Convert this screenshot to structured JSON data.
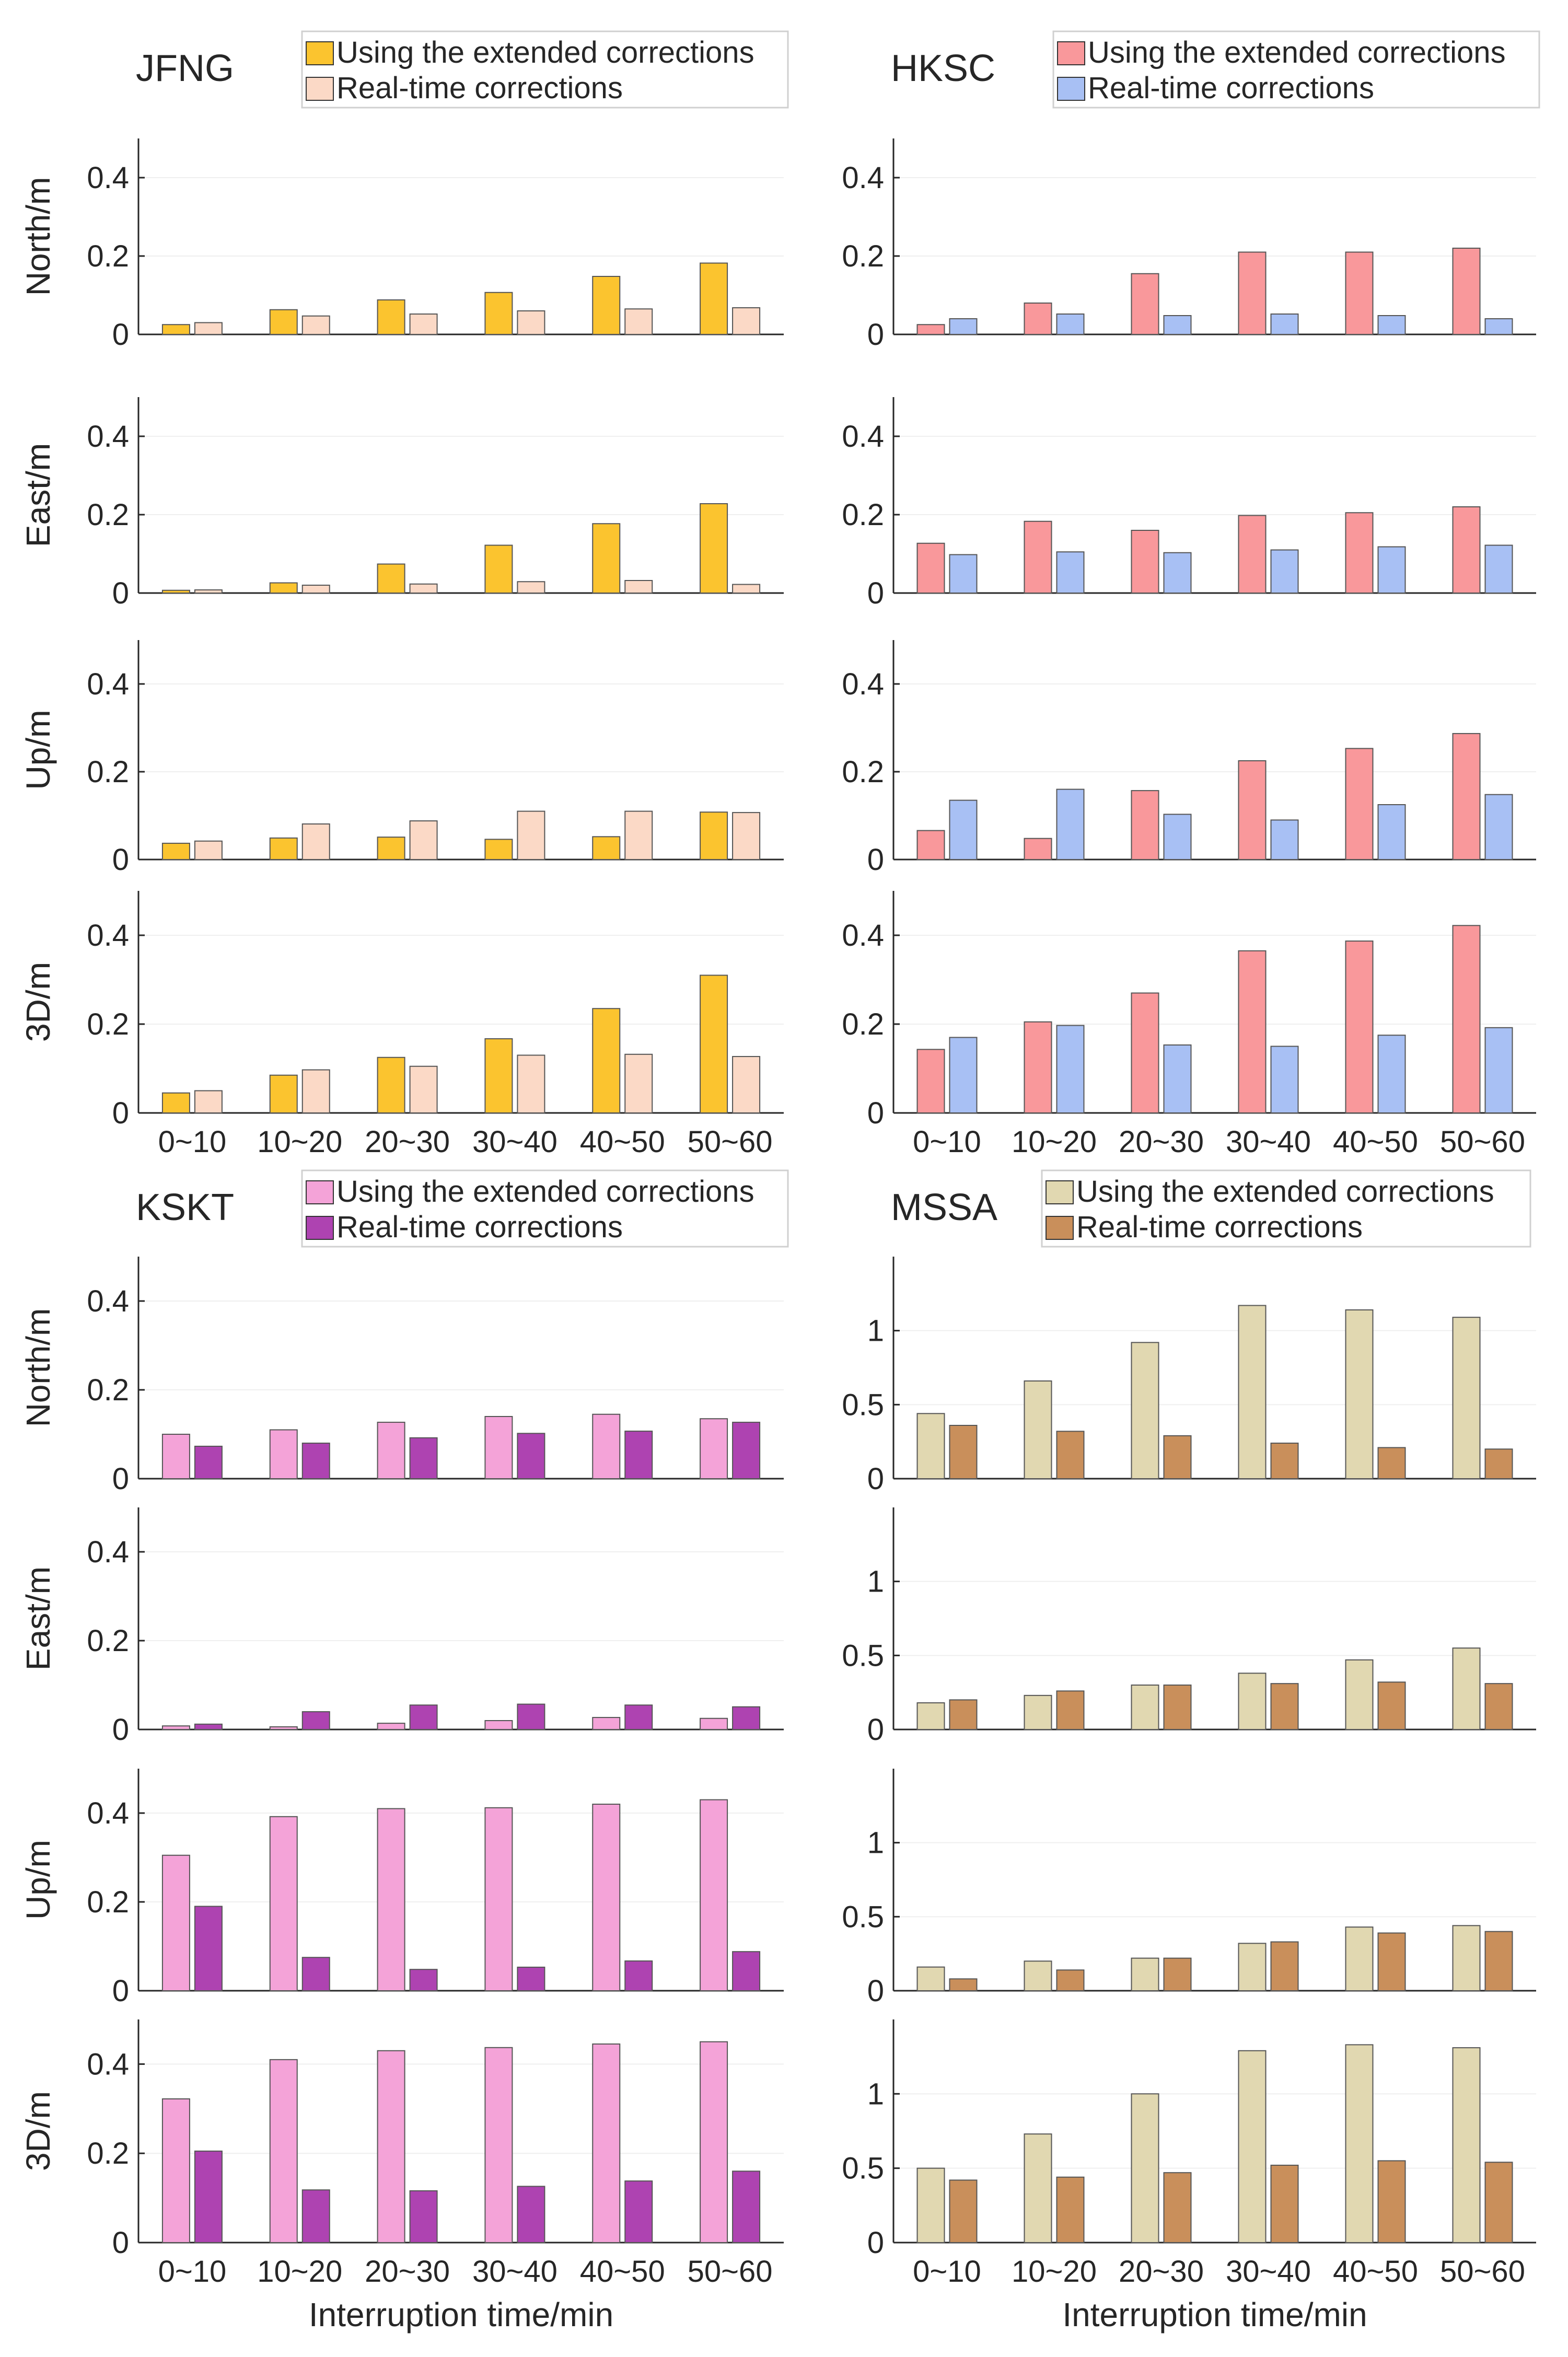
{
  "figure": {
    "xlabel": "Interruption time/min",
    "categories": [
      "0~10",
      "10~20",
      "20~30",
      "30~40",
      "40~50",
      "50~60"
    ],
    "rows": [
      "North/m",
      "East/m",
      "Up/m",
      "3D/m"
    ]
  },
  "colors": {
    "JFNG": [
      "#fbc42f",
      "#fbd9c6"
    ],
    "HKSC": [
      "#f9989b",
      "#a8c0f4"
    ],
    "KSKT": [
      "#f4a3d8",
      "#ae43b1"
    ],
    "MSSA": [
      "#e1d8b1",
      "#c98f5b"
    ]
  },
  "chart_data": [
    {
      "type": "bar",
      "station": "JFNG",
      "title": "JFNG",
      "categories": [
        "0~10",
        "10~20",
        "20~30",
        "30~40",
        "40~50",
        "50~60"
      ],
      "ylim": [
        0,
        0.5
      ],
      "yticks": [
        0,
        0.2,
        0.4
      ],
      "ytick_labels": [
        "0",
        "0.2",
        "0.4"
      ],
      "legend": [
        "Using the extended corrections",
        "Real-time corrections"
      ],
      "panels": [
        {
          "ylabel": "North/m",
          "xlabel": "",
          "series": [
            {
              "name": "Using the extended corrections",
              "values": [
                0.025,
                0.063,
                0.088,
                0.107,
                0.148,
                0.182
              ]
            },
            {
              "name": "Real-time corrections",
              "values": [
                0.03,
                0.047,
                0.052,
                0.06,
                0.065,
                0.068
              ]
            }
          ]
        },
        {
          "ylabel": "East/m",
          "xlabel": "",
          "series": [
            {
              "name": "Using the extended corrections",
              "values": [
                0.007,
                0.026,
                0.074,
                0.122,
                0.177,
                0.228
              ]
            },
            {
              "name": "Real-time corrections",
              "values": [
                0.008,
                0.02,
                0.023,
                0.029,
                0.032,
                0.022
              ]
            }
          ]
        },
        {
          "ylabel": "Up/m",
          "xlabel": "",
          "series": [
            {
              "name": "Using the extended corrections",
              "values": [
                0.037,
                0.049,
                0.051,
                0.046,
                0.052,
                0.108
              ]
            },
            {
              "name": "Real-time corrections",
              "values": [
                0.042,
                0.081,
                0.088,
                0.11,
                0.11,
                0.107
              ]
            }
          ]
        },
        {
          "ylabel": "3D/m",
          "xlabel": "Interruption time/min",
          "series": [
            {
              "name": "Using the extended corrections",
              "values": [
                0.045,
                0.085,
                0.125,
                0.167,
                0.235,
                0.31
              ]
            },
            {
              "name": "Real-time corrections",
              "values": [
                0.05,
                0.097,
                0.105,
                0.13,
                0.132,
                0.127
              ]
            }
          ]
        }
      ]
    },
    {
      "type": "bar",
      "station": "HKSC",
      "title": "HKSC",
      "categories": [
        "0~10",
        "10~20",
        "20~30",
        "30~40",
        "40~50",
        "50~60"
      ],
      "ylim": [
        0,
        0.5
      ],
      "yticks": [
        0,
        0.2,
        0.4
      ],
      "ytick_labels": [
        "0",
        "0.2",
        "0.4"
      ],
      "legend": [
        "Using the extended corrections",
        "Real-time corrections"
      ],
      "panels": [
        {
          "ylabel": "North/m",
          "xlabel": "",
          "series": [
            {
              "name": "Using the extended corrections",
              "values": [
                0.025,
                0.08,
                0.155,
                0.21,
                0.21,
                0.22
              ]
            },
            {
              "name": "Real-time corrections",
              "values": [
                0.04,
                0.052,
                0.048,
                0.052,
                0.048,
                0.04
              ]
            }
          ]
        },
        {
          "ylabel": "East/m",
          "xlabel": "",
          "series": [
            {
              "name": "Using the extended corrections",
              "values": [
                0.127,
                0.183,
                0.16,
                0.198,
                0.205,
                0.22
              ]
            },
            {
              "name": "Real-time corrections",
              "values": [
                0.098,
                0.105,
                0.103,
                0.11,
                0.118,
                0.122
              ]
            }
          ]
        },
        {
          "ylabel": "Up/m",
          "xlabel": "",
          "series": [
            {
              "name": "Using the extended corrections",
              "values": [
                0.066,
                0.048,
                0.157,
                0.225,
                0.253,
                0.287
              ]
            },
            {
              "name": "Real-time corrections",
              "values": [
                0.135,
                0.16,
                0.103,
                0.09,
                0.125,
                0.148
              ]
            }
          ]
        },
        {
          "ylabel": "3D/m",
          "xlabel": "Interruption time/min",
          "series": [
            {
              "name": "Using the extended corrections",
              "values": [
                0.143,
                0.205,
                0.27,
                0.365,
                0.387,
                0.422
              ]
            },
            {
              "name": "Real-time corrections",
              "values": [
                0.17,
                0.197,
                0.153,
                0.15,
                0.175,
                0.192
              ]
            }
          ]
        }
      ]
    },
    {
      "type": "bar",
      "station": "KSKT",
      "title": "KSKT",
      "categories": [
        "0~10",
        "10~20",
        "20~30",
        "30~40",
        "40~50",
        "50~60"
      ],
      "ylim": [
        0,
        0.5
      ],
      "yticks": [
        0,
        0.2,
        0.4
      ],
      "ytick_labels": [
        "0",
        "0.2",
        "0.4"
      ],
      "legend": [
        "Using the extended corrections",
        "Real-time corrections"
      ],
      "panels": [
        {
          "ylabel": "North/m",
          "xlabel": "",
          "series": [
            {
              "name": "Using the extended corrections",
              "values": [
                0.1,
                0.11,
                0.127,
                0.14,
                0.145,
                0.135
              ]
            },
            {
              "name": "Real-time corrections",
              "values": [
                0.073,
                0.08,
                0.092,
                0.102,
                0.107,
                0.127
              ]
            }
          ]
        },
        {
          "ylabel": "East/m",
          "xlabel": "",
          "series": [
            {
              "name": "Using the extended corrections",
              "values": [
                0.008,
                0.006,
                0.014,
                0.02,
                0.027,
                0.025
              ]
            },
            {
              "name": "Real-time corrections",
              "values": [
                0.012,
                0.04,
                0.055,
                0.057,
                0.055,
                0.051
              ]
            }
          ]
        },
        {
          "ylabel": "Up/m",
          "xlabel": "",
          "series": [
            {
              "name": "Using the extended corrections",
              "values": [
                0.305,
                0.392,
                0.41,
                0.412,
                0.42,
                0.43
              ]
            },
            {
              "name": "Real-time corrections",
              "values": [
                0.19,
                0.075,
                0.048,
                0.053,
                0.067,
                0.088
              ]
            }
          ]
        },
        {
          "ylabel": "3D/m",
          "xlabel": "Interruption time/min",
          "series": [
            {
              "name": "Using the extended corrections",
              "values": [
                0.322,
                0.41,
                0.43,
                0.437,
                0.445,
                0.45
              ]
            },
            {
              "name": "Real-time corrections",
              "values": [
                0.205,
                0.118,
                0.116,
                0.126,
                0.138,
                0.16
              ]
            }
          ]
        }
      ]
    },
    {
      "type": "bar",
      "station": "MSSA",
      "title": "MSSA",
      "categories": [
        "0~10",
        "10~20",
        "20~30",
        "30~40",
        "40~50",
        "50~60"
      ],
      "ylim": [
        0,
        1.5
      ],
      "yticks": [
        0,
        0.5,
        1
      ],
      "ytick_labels": [
        "0",
        "0.5",
        "1"
      ],
      "legend": [
        "Using the extended corrections",
        "Real-time corrections"
      ],
      "panels": [
        {
          "ylabel": "",
          "xlabel": "",
          "series": [
            {
              "name": "Using the extended corrections",
              "values": [
                0.44,
                0.66,
                0.92,
                1.17,
                1.14,
                1.09
              ]
            },
            {
              "name": "Real-time corrections",
              "values": [
                0.36,
                0.32,
                0.29,
                0.24,
                0.21,
                0.2
              ]
            }
          ]
        },
        {
          "ylabel": "",
          "xlabel": "",
          "series": [
            {
              "name": "Using the extended corrections",
              "values": [
                0.18,
                0.23,
                0.3,
                0.38,
                0.47,
                0.55
              ]
            },
            {
              "name": "Real-time corrections",
              "values": [
                0.2,
                0.26,
                0.3,
                0.31,
                0.32,
                0.31
              ]
            }
          ]
        },
        {
          "ylabel": "",
          "xlabel": "",
          "series": [
            {
              "name": "Using the extended corrections",
              "values": [
                0.16,
                0.2,
                0.22,
                0.32,
                0.43,
                0.44
              ]
            },
            {
              "name": "Real-time corrections",
              "values": [
                0.08,
                0.14,
                0.22,
                0.33,
                0.39,
                0.4
              ]
            }
          ]
        },
        {
          "ylabel": "",
          "xlabel": "Interruption time/min",
          "series": [
            {
              "name": "Using the extended corrections",
              "values": [
                0.5,
                0.73,
                1.0,
                1.29,
                1.33,
                1.31
              ]
            },
            {
              "name": "Real-time corrections",
              "values": [
                0.42,
                0.44,
                0.47,
                0.52,
                0.55,
                0.54
              ]
            }
          ]
        }
      ]
    }
  ]
}
